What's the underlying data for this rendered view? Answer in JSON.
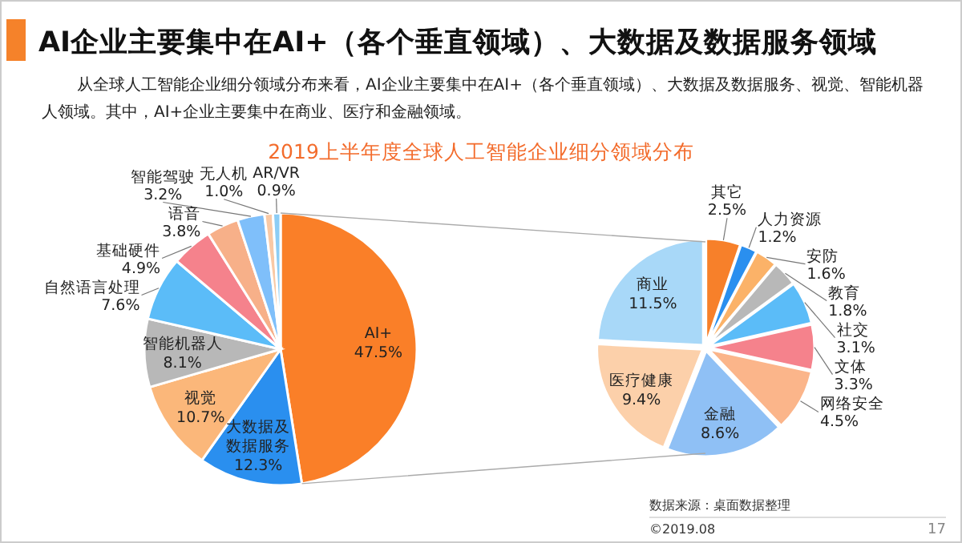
{
  "chart_data": [
    {
      "type": "pie",
      "title": "2019上半年度全球人工智能企业细分领域分布",
      "categories": [
        "AI+",
        "大数据及数据服务",
        "视觉",
        "智能机器人",
        "自然语言处理",
        "基础硬件",
        "语音",
        "智能驾驶",
        "无人机",
        "AR/VR"
      ],
      "values": [
        47.5,
        12.3,
        10.7,
        8.1,
        7.6,
        4.9,
        3.8,
        3.2,
        1.0,
        0.9
      ],
      "colors": [
        "#fa7f28",
        "#2a8fef",
        "#fbb77a",
        "#b8b8b8",
        "#5bbcf8",
        "#f5828c",
        "#f7b089",
        "#7fbffa",
        "#f9c9a5",
        "#8ccdf5"
      ],
      "value_labels": [
        "47.5%",
        "12.3%",
        "10.7%",
        "8.1%",
        "7.6%",
        "4.9%",
        "3.8%",
        "3.2%",
        "1.0%",
        "0.9%"
      ],
      "annotations": [
        "AI企业主要集中在AI+（各个垂直领域）、大数据及数据服务领域",
        "从全球人工智能企业细分领域分布来看，AI企业主要集中在AI+（各个垂直领域）、大数据及数据服务、视觉、智能机器人领域。其中，AI+企业主要集中在商业、医疗和金融领域。",
        "数据来源：桌面数据整理",
        "©2019.08",
        "17"
      ]
    },
    {
      "type": "pie",
      "categories": [
        "其它",
        "人力资源",
        "安防",
        "教育",
        "社交",
        "文体",
        "网络安全",
        "金融",
        "医疗健康",
        "商业"
      ],
      "values": [
        2.5,
        1.2,
        1.6,
        1.8,
        3.1,
        3.3,
        4.5,
        8.6,
        9.4,
        11.5
      ],
      "colors": [
        "#f7802a",
        "#2a8fef",
        "#fbb268",
        "#b8b8b8",
        "#5bbcf8",
        "#f5828c",
        "#fbb58a",
        "#8fc0f5",
        "#fcd0aa",
        "#a8d8f8"
      ],
      "value_labels": [
        "2.5%",
        "1.2%",
        "1.6%",
        "1.8%",
        "3.1%",
        "3.3%",
        "4.5%",
        "8.6%",
        "9.4%",
        "11.5%"
      ]
    }
  ]
}
